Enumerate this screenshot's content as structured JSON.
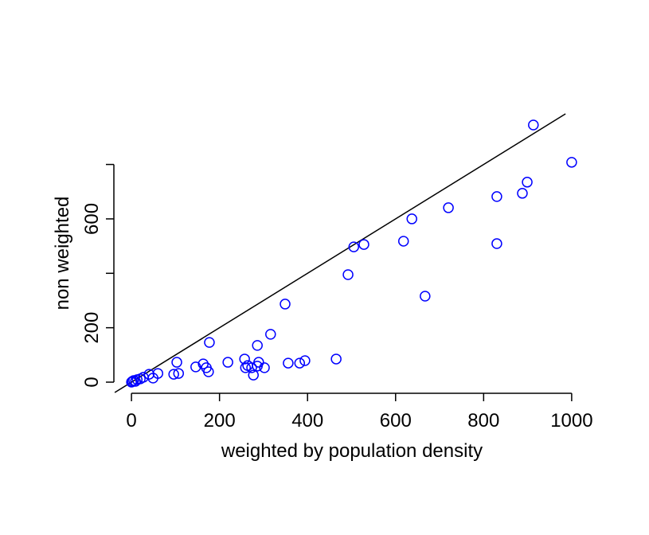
{
  "chart_data": {
    "type": "scatter",
    "xlabel": "weighted by population density",
    "ylabel": "non weighted",
    "xlim": [
      -40,
      1040
    ],
    "ylim": [
      -38,
      986
    ],
    "xticks": [
      0,
      200,
      400,
      600,
      800,
      1000
    ],
    "yticks": [
      0,
      200,
      {
        "value": 400,
        "label": null
      },
      600,
      {
        "value": 800,
        "label": null
      }
    ],
    "identity_line": true,
    "color": "#0000ff",
    "x": [
      913,
      1000,
      899,
      888,
      830,
      720,
      637,
      618,
      528,
      505,
      830,
      492,
      667,
      349,
      316,
      177,
      286,
      465,
      394,
      382,
      356,
      302,
      289,
      286,
      257,
      259,
      264,
      273,
      277,
      219,
      163,
      170,
      175,
      146,
      103,
      107,
      96,
      60,
      49,
      40,
      27,
      20,
      13,
      5,
      2,
      0,
      9
    ],
    "values": [
      945,
      808,
      735,
      694,
      682,
      641,
      600,
      518,
      506,
      497,
      509,
      395,
      316,
      287,
      176,
      146,
      135,
      85,
      79,
      70,
      70,
      53,
      73,
      59,
      85,
      53,
      61,
      53,
      26,
      73,
      67,
      53,
      38,
      56,
      73,
      32,
      29,
      32,
      15,
      29,
      18,
      12,
      9,
      6,
      3,
      0,
      3
    ]
  }
}
